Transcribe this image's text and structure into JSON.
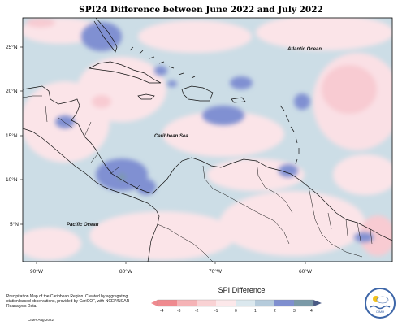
{
  "title": "SPI24 Difference between June 2022 and July 2022",
  "labels": {
    "lat": [
      "25°N",
      "20°N",
      "15°N",
      "10°N",
      "5°N"
    ],
    "lon": [
      "90°W",
      "80°W",
      "70°W",
      "60°W"
    ],
    "atlantic": "Atlantic Ocean",
    "caribbean": "Caribbean Sea",
    "pacific": "Pacific Ocean"
  },
  "legend": {
    "title": "SPI Difference",
    "ticks": [
      "-4",
      "-3",
      "-2",
      "-1",
      "0",
      "1",
      "2",
      "3",
      "4"
    ],
    "colors": [
      "#ef8a8f",
      "#f5b3b6",
      "#f9d2d4",
      "#fce8ea",
      "#dbe8ee",
      "#b5cbdb",
      "#7f8fcf",
      "#7b9aa8",
      "#4a5b85"
    ]
  },
  "footer": {
    "description": "Precipitation Map of the Caribbean Region. Created by aggregating station based observations, provided by CariCOF, with NCEP/NCAR Reanalysis Data.",
    "credit": "CIMH Aug-2022"
  },
  "logo": {
    "text": "CIMH"
  },
  "colors": {
    "neutral_blue": "#ccdde6",
    "light_pink": "#fce4e8",
    "pink": "#f8cbd2",
    "blue_patch": "#8090d2"
  }
}
